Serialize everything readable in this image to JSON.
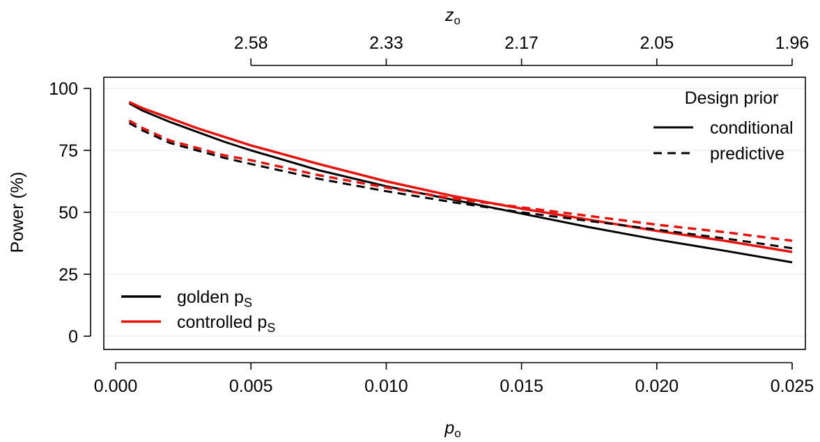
{
  "chart_data": {
    "type": "line",
    "xlabel": "p",
    "xlabel_sub": "o",
    "ylabel": "Power (%)",
    "top_axis_label": "z",
    "top_axis_label_sub": "o",
    "xlim": [
      0.0,
      0.025
    ],
    "ylim": [
      0,
      100
    ],
    "x_ticks": [
      0.0,
      0.005,
      0.01,
      0.015,
      0.02,
      0.025
    ],
    "x_tick_labels": [
      "0.000",
      "0.005",
      "0.010",
      "0.015",
      "0.020",
      "0.025"
    ],
    "y_ticks": [
      0,
      25,
      50,
      75,
      100
    ],
    "y_tick_labels": [
      "0",
      "25",
      "50",
      "75",
      "100"
    ],
    "top_ticks_x": [
      0.005,
      0.01,
      0.015,
      0.02,
      0.025
    ],
    "top_tick_labels": [
      "2.58",
      "2.33",
      "2.17",
      "2.05",
      "1.96"
    ],
    "horizontal_grid": true,
    "legend_colors": {
      "title": "",
      "placement": "bottom-left",
      "entries": [
        {
          "label": "golden p",
          "sub": "S",
          "color": "#000000"
        },
        {
          "label": "controlled p",
          "sub": "S",
          "color": "#e8120c"
        }
      ]
    },
    "legend_linetypes": {
      "title": "Design prior",
      "placement": "top-right",
      "entries": [
        {
          "label": "conditional",
          "dash": "solid"
        },
        {
          "label": "predictive",
          "dash": "dashed"
        }
      ]
    },
    "x": [
      0.0005,
      0.001,
      0.002,
      0.003,
      0.004,
      0.005,
      0.0075,
      0.01,
      0.0125,
      0.015,
      0.0175,
      0.02,
      0.0225,
      0.025
    ],
    "series": [
      {
        "name": "golden conditional",
        "color": "#000000",
        "dash": "solid",
        "values": [
          94,
          91,
          86.5,
          82.5,
          78.5,
          75,
          67,
          60.5,
          55,
          49.5,
          44,
          39,
          34.5,
          29.8
        ]
      },
      {
        "name": "controlled conditional",
        "color": "#e8120c",
        "dash": "solid",
        "values": [
          94.5,
          92,
          88,
          84,
          80.5,
          77,
          69.5,
          62.5,
          56.5,
          51.5,
          47,
          42.5,
          38.5,
          34
        ]
      },
      {
        "name": "golden predictive",
        "color": "#000000",
        "dash": "dashed",
        "values": [
          86,
          83,
          78,
          75,
          72,
          69.5,
          63.5,
          58.5,
          54,
          50,
          46.5,
          43,
          39.5,
          35.5
        ]
      },
      {
        "name": "controlled predictive",
        "color": "#e8120c",
        "dash": "dashed",
        "values": [
          87,
          84,
          79,
          76,
          73,
          71,
          65,
          60,
          55.5,
          52,
          48.5,
          45,
          42,
          38.5
        ]
      }
    ]
  }
}
